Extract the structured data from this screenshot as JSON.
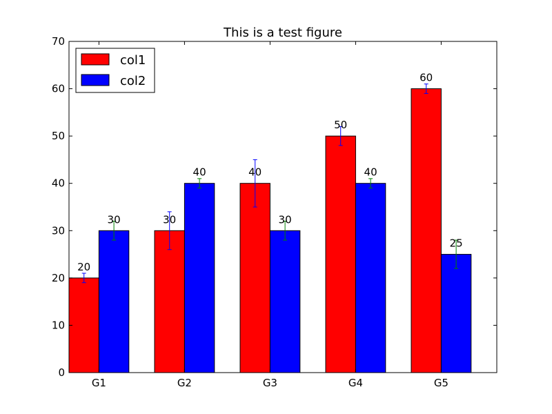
{
  "chart_data": {
    "type": "bar",
    "title": "This is a test figure",
    "xlabel": "",
    "ylabel": "",
    "categories": [
      "G1",
      "G2",
      "G3",
      "G4",
      "G5"
    ],
    "ylim": [
      0,
      70
    ],
    "yticks": [
      0,
      10,
      20,
      30,
      40,
      50,
      60,
      70
    ],
    "grid": false,
    "legend_position": "top-left",
    "series": [
      {
        "name": "col1",
        "values": [
          20,
          30,
          40,
          50,
          60
        ],
        "errors": [
          1,
          4,
          5,
          2,
          1
        ],
        "color": "#ff0000",
        "error_color": "#0000ff"
      },
      {
        "name": "col2",
        "values": [
          30,
          40,
          30,
          40,
          25
        ],
        "errors": [
          2,
          1,
          2,
          1,
          3
        ],
        "color": "#0000ff",
        "error_color": "#008000"
      }
    ]
  }
}
